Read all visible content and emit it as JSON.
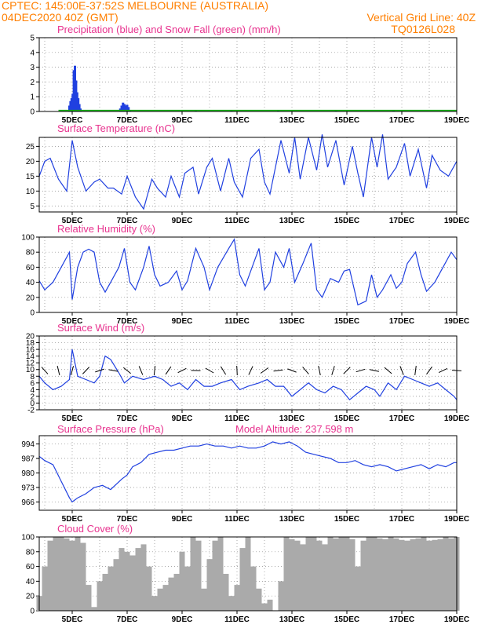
{
  "header": {
    "line1_left": "CPTEC:   145:00E-37:52S   MELBOURNE (AUSTRALIA)",
    "line2_left": "04DEC2020 40Z (GMT)",
    "line2_right": "Vertical Grid Line: 40Z",
    "line3_right": "TQ0126L028"
  },
  "colors": {
    "header": "#ff7f00",
    "title": "#e8338f",
    "line": "#2040e0",
    "snow": "#10b010",
    "cloud": "#aaaaaa",
    "arrow": "#000000"
  },
  "chart_data": [
    {
      "type": "bar",
      "title": "Precipitation (blue) and Snow Fall (green) (mm/h)",
      "x_ticks": [
        "5DEC",
        "7DEC",
        "9DEC",
        "11DEC",
        "13DEC",
        "15DEC",
        "17DEC",
        "19DEC"
      ],
      "ylim": [
        0,
        5
      ],
      "y_ticks": [
        0,
        1,
        2,
        3,
        4,
        5
      ],
      "grid": true,
      "series": [
        {
          "name": "precipitation",
          "x_days": [
            4.9,
            4.94,
            4.98,
            5.02,
            5.06,
            5.1,
            5.14,
            5.18,
            5.22,
            5.26,
            5.3,
            6.75,
            6.8,
            6.85,
            6.9,
            6.95,
            7.0,
            7.05,
            7.1,
            9.5,
            10.8,
            12.5,
            14.6,
            16.7
          ],
          "values": [
            0.4,
            0.7,
            0.9,
            1.2,
            2.8,
            3.1,
            2.1,
            1.3,
            0.9,
            0.5,
            0.2,
            0.2,
            0.4,
            0.6,
            0.5,
            0.4,
            0.45,
            0.3,
            0.1,
            0.05,
            0.05,
            0.05,
            0.05,
            0.05
          ]
        },
        {
          "name": "snow",
          "x_days": [
            4.5,
            7.4,
            9.0,
            12.0,
            15.0,
            18.0,
            19.0
          ],
          "values": [
            0.05,
            0.05,
            0.05,
            0.05,
            0.05,
            0.05,
            0.05
          ]
        }
      ]
    },
    {
      "type": "line",
      "title": "Surface Temperature (nC)",
      "x_ticks": [
        "5DEC",
        "7DEC",
        "9DEC",
        "11DEC",
        "13DEC",
        "15DEC",
        "17DEC",
        "19DEC"
      ],
      "ylim": [
        3,
        28
      ],
      "y_ticks": [
        5,
        10,
        15,
        20,
        25
      ],
      "grid": true,
      "x_days": [
        3.8,
        4.0,
        4.2,
        4.5,
        4.8,
        5.0,
        5.2,
        5.5,
        5.8,
        6.0,
        6.3,
        6.5,
        6.8,
        7.0,
        7.3,
        7.6,
        7.9,
        8.1,
        8.4,
        8.6,
        8.9,
        9.1,
        9.4,
        9.6,
        9.9,
        10.1,
        10.4,
        10.7,
        10.9,
        11.2,
        11.5,
        11.8,
        12.0,
        12.2,
        12.6,
        12.9,
        13.1,
        13.3,
        13.6,
        13.9,
        14.1,
        14.3,
        14.6,
        14.9,
        15.2,
        15.4,
        15.6,
        15.9,
        16.1,
        16.3,
        16.5,
        16.8,
        17.1,
        17.3,
        17.6,
        17.9,
        18.1,
        18.4,
        18.7,
        19.0
      ],
      "values": [
        15,
        20,
        21,
        14,
        10,
        27,
        18,
        10,
        13,
        14,
        11,
        11,
        9,
        15,
        8,
        4,
        14,
        11,
        8,
        15,
        8,
        16,
        18,
        9,
        18,
        21,
        10,
        21,
        13,
        8,
        21,
        24,
        13,
        9,
        27,
        16,
        28,
        14,
        28,
        17,
        29,
        18,
        27,
        12,
        25,
        16,
        8,
        28,
        18,
        29,
        14,
        18,
        26,
        15,
        24,
        11,
        22,
        17,
        15,
        20
      ]
    },
    {
      "type": "line",
      "title": "Relative Humidity (%)",
      "x_ticks": [
        "5DEC",
        "7DEC",
        "9DEC",
        "11DEC",
        "13DEC",
        "15DEC",
        "17DEC",
        "19DEC"
      ],
      "ylim": [
        0,
        100
      ],
      "y_ticks": [
        0,
        20,
        40,
        60,
        80,
        100
      ],
      "grid": true,
      "x_days": [
        3.8,
        4.0,
        4.3,
        4.6,
        4.9,
        5.0,
        5.2,
        5.4,
        5.6,
        5.8,
        6.0,
        6.2,
        6.4,
        6.7,
        6.9,
        7.1,
        7.3,
        7.6,
        7.8,
        8.0,
        8.2,
        8.5,
        8.8,
        9.0,
        9.2,
        9.5,
        9.8,
        10.0,
        10.3,
        10.7,
        10.9,
        11.1,
        11.3,
        11.6,
        11.8,
        12.0,
        12.2,
        12.4,
        12.7,
        12.9,
        13.1,
        13.4,
        13.7,
        13.9,
        14.1,
        14.4,
        14.7,
        14.9,
        15.1,
        15.4,
        15.7,
        15.9,
        16.1,
        16.3,
        16.6,
        16.8,
        17.0,
        17.2,
        17.5,
        17.7,
        17.9,
        18.2,
        18.5,
        18.8,
        19.0
      ],
      "values": [
        42,
        30,
        40,
        60,
        80,
        17,
        60,
        80,
        84,
        80,
        40,
        27,
        40,
        60,
        85,
        40,
        30,
        60,
        88,
        50,
        35,
        40,
        55,
        30,
        42,
        85,
        60,
        30,
        60,
        85,
        97,
        50,
        35,
        65,
        85,
        30,
        40,
        80,
        60,
        85,
        40,
        65,
        92,
        30,
        20,
        45,
        40,
        55,
        57,
        10,
        15,
        50,
        20,
        30,
        50,
        32,
        40,
        65,
        80,
        50,
        28,
        40,
        60,
        80,
        70
      ]
    },
    {
      "type": "line",
      "title": "Surface Wind (m/s)",
      "x_ticks": [
        "5DEC",
        "7DEC",
        "9DEC",
        "11DEC",
        "13DEC",
        "15DEC",
        "17DEC",
        "19DEC"
      ],
      "ylim": [
        -2,
        20
      ],
      "y_ticks": [
        -2,
        0,
        2,
        4,
        6,
        8,
        10,
        12,
        14,
        16,
        18,
        20
      ],
      "grid": true,
      "x_days": [
        3.8,
        4.0,
        4.3,
        4.6,
        4.9,
        5.0,
        5.2,
        5.5,
        5.8,
        6.0,
        6.2,
        6.4,
        6.7,
        6.9,
        7.2,
        7.6,
        8.0,
        8.3,
        8.6,
        8.9,
        9.2,
        9.5,
        9.8,
        10.1,
        10.4,
        10.8,
        11.1,
        11.4,
        11.8,
        12.1,
        12.4,
        12.7,
        13.0,
        13.3,
        13.6,
        13.9,
        14.2,
        14.5,
        14.8,
        15.1,
        15.4,
        15.7,
        16.0,
        16.2,
        16.5,
        16.8,
        17.1,
        17.4,
        17.7,
        18.0,
        18.3,
        18.6,
        18.9,
        19.0
      ],
      "values": [
        8,
        6,
        4,
        5,
        7,
        16,
        8,
        7,
        6,
        8,
        14,
        13,
        9,
        6,
        8,
        7,
        8,
        7,
        5,
        6,
        4,
        7,
        5,
        5,
        6,
        7,
        4,
        5,
        6,
        7,
        5,
        5,
        2,
        4,
        6,
        4,
        3,
        5,
        4,
        1,
        3,
        5,
        4,
        2,
        6,
        4,
        8,
        7,
        6,
        5,
        6,
        4,
        2,
        1
      ]
    },
    {
      "type": "line",
      "title": "Surface Pressure (hPa)",
      "subtitle": "Model Altitude: 237.598 m",
      "x_ticks": [
        "5DEC",
        "7DEC",
        "9DEC",
        "11DEC",
        "13DEC",
        "15DEC",
        "17DEC",
        "19DEC"
      ],
      "ylim": [
        962,
        998
      ],
      "y_ticks": [
        966,
        973,
        980,
        987,
        994
      ],
      "grid": true,
      "x_days": [
        3.8,
        4.0,
        4.3,
        4.6,
        4.9,
        5.0,
        5.2,
        5.5,
        5.8,
        6.1,
        6.4,
        6.8,
        7.0,
        7.2,
        7.5,
        7.8,
        8.1,
        8.4,
        8.7,
        9.0,
        9.3,
        9.6,
        9.9,
        10.2,
        10.5,
        10.8,
        11.1,
        11.4,
        11.7,
        12.0,
        12.3,
        12.6,
        12.9,
        13.2,
        13.5,
        13.8,
        14.1,
        14.4,
        14.7,
        15.0,
        15.3,
        15.6,
        15.9,
        16.2,
        16.5,
        16.8,
        17.1,
        17.4,
        17.7,
        18.0,
        18.3,
        18.6,
        18.9,
        19.0
      ],
      "values": [
        988,
        986,
        984,
        976,
        968,
        966,
        968,
        970,
        973,
        974,
        972,
        977,
        979,
        983,
        985,
        989,
        990,
        991,
        991,
        992,
        993,
        993,
        994,
        993,
        993,
        992,
        993,
        992,
        992,
        993,
        995,
        994,
        995,
        993,
        990,
        989,
        988,
        987,
        985,
        985,
        986,
        984,
        983,
        984,
        983,
        981,
        982,
        983,
        984,
        982,
        984,
        983,
        985,
        985
      ]
    },
    {
      "type": "bar",
      "title": "Cloud Cover (%)",
      "x_ticks": [
        "5DEC",
        "7DEC",
        "9DEC",
        "11DEC",
        "13DEC",
        "15DEC",
        "17DEC",
        "19DEC"
      ],
      "ylim": [
        0,
        100
      ],
      "y_ticks": [
        0,
        20,
        40,
        60,
        80,
        100
      ],
      "grid": true,
      "x_days": [
        3.8,
        4.0,
        4.2,
        4.4,
        4.6,
        4.8,
        5.0,
        5.2,
        5.4,
        5.6,
        5.8,
        6.0,
        6.2,
        6.4,
        6.6,
        6.8,
        7.0,
        7.2,
        7.4,
        7.6,
        7.8,
        8.0,
        8.2,
        8.4,
        8.6,
        8.8,
        9.0,
        9.2,
        9.4,
        9.6,
        9.8,
        10.0,
        10.2,
        10.4,
        10.6,
        10.8,
        11.0,
        11.2,
        11.4,
        11.6,
        11.8,
        12.0,
        12.2,
        12.4,
        12.6,
        12.8,
        13.0,
        13.2,
        13.4,
        13.6,
        13.8,
        14.0,
        14.2,
        14.4,
        14.6,
        14.8,
        15.0,
        15.2,
        15.4,
        15.6,
        15.8,
        16.0,
        16.2,
        16.4,
        16.6,
        16.8,
        17.0,
        17.2,
        17.4,
        17.6,
        17.8,
        18.0,
        18.2,
        18.4,
        18.6,
        18.8,
        19.0
      ],
      "values": [
        20,
        60,
        95,
        100,
        100,
        98,
        95,
        100,
        92,
        35,
        5,
        40,
        50,
        60,
        70,
        85,
        80,
        75,
        85,
        90,
        60,
        20,
        30,
        35,
        45,
        50,
        80,
        60,
        100,
        95,
        30,
        70,
        95,
        100,
        50,
        20,
        35,
        85,
        100,
        60,
        30,
        10,
        15,
        0,
        40,
        100,
        97,
        95,
        90,
        100,
        100,
        95,
        90,
        100,
        98,
        100,
        100,
        97,
        60,
        95,
        100,
        100,
        98,
        97,
        100,
        98,
        96,
        95,
        97,
        98,
        100,
        95,
        96,
        97,
        100,
        98,
        100
      ]
    }
  ]
}
